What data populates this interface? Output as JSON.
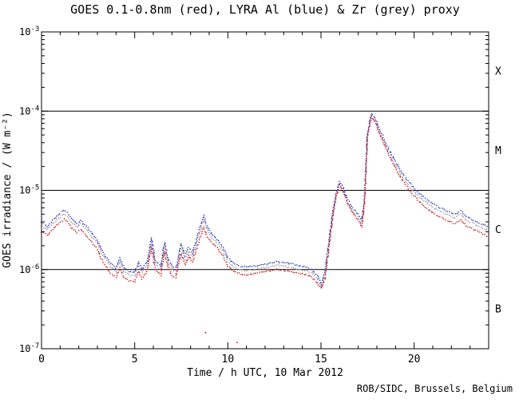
{
  "title": "GOES 0.1-0.8nm (red), LYRA Al (blue) & Zr (grey) proxy",
  "xlabel": "Time / h UTC, 10 Mar 2012",
  "ylabel": "GOES irradiance / (W m⁻²)",
  "credit": "ROB/SIDC, Brussels, Belgium",
  "colors": {
    "goes": "#cc1111",
    "al": "#2233bb",
    "zr": "#9a9a9a",
    "axis": "#000000"
  },
  "chart_data": {
    "type": "scatter",
    "title": "GOES 0.1-0.8nm (red), LYRA Al (blue) & Zr (grey) proxy",
    "xlabel": "Time / h UTC, 10 Mar 2012",
    "ylabel": "GOES irradiance / (W m⁻²)",
    "legend": "encoded in title: GOES=red, LYRA Al=blue, LYRA Zr=grey",
    "xlim": [
      0,
      24
    ],
    "ylog": true,
    "ylim_exp": [
      -7,
      -3
    ],
    "xticks_major": [
      0,
      5,
      10,
      15,
      20
    ],
    "hlines_exp": [
      -6,
      -5,
      -4
    ],
    "flare_classes": [
      {
        "label": "X",
        "exp": -3.5
      },
      {
        "label": "M",
        "exp": -4.5
      },
      {
        "label": "C",
        "exp": -5.5
      },
      {
        "label": "B",
        "exp": -6.5
      }
    ],
    "x": [
      0.0,
      0.3,
      0.6,
      0.9,
      1.2,
      1.4,
      1.6,
      1.9,
      2.1,
      2.4,
      2.7,
      3.0,
      3.2,
      3.5,
      3.7,
      4.0,
      4.2,
      4.4,
      4.7,
      5.0,
      5.2,
      5.4,
      5.7,
      5.9,
      6.1,
      6.4,
      6.6,
      6.8,
      7.0,
      7.2,
      7.5,
      7.7,
      7.9,
      8.1,
      8.4,
      8.7,
      8.9,
      9.2,
      9.5,
      9.8,
      10.0,
      10.3,
      10.7,
      11.0,
      11.4,
      11.8,
      12.2,
      12.6,
      13.0,
      13.4,
      13.8,
      14.2,
      14.5,
      14.8,
      15.0,
      15.2,
      15.4,
      15.6,
      15.8,
      16.0,
      16.2,
      16.4,
      16.7,
      17.0,
      17.2,
      17.35,
      17.5,
      17.7,
      17.9,
      18.1,
      18.4,
      18.7,
      19.0,
      19.4,
      19.8,
      20.2,
      20.6,
      21.0,
      21.4,
      21.8,
      22.2,
      22.5,
      22.8,
      23.2,
      23.6,
      24.0
    ],
    "series": [
      {
        "name": "LYRA Zr proxy",
        "color_key": "zr",
        "values": [
          3.5e-06,
          3.2e-06,
          3.8e-06,
          4.4e-06,
          5e-06,
          4.7e-06,
          4e-06,
          3.4e-06,
          3.8e-06,
          3.2e-06,
          2.6e-06,
          2.2e-06,
          1.6e-06,
          1.3e-06,
          1.1e-06,
          9.5e-07,
          1.26e-06,
          9.5e-07,
          8.6e-07,
          8.3e-07,
          1.13e-06,
          9e-07,
          1.17e-06,
          2.25e-06,
          1.17e-06,
          9.9e-07,
          2e-06,
          1.22e-06,
          9.9e-07,
          9e-07,
          1.9e-06,
          1.35e-06,
          1.7e-06,
          1.44e-06,
          2.5e-06,
          4.3e-06,
          3.1e-06,
          2.4e-06,
          2.1e-06,
          1.6e-06,
          1.26e-06,
          1.08e-06,
          9.9e-07,
          9.7e-07,
          9.9e-07,
          1.04e-06,
          1.08e-06,
          1.13e-06,
          1.1e-06,
          1.06e-06,
          1.01e-06,
          9.7e-07,
          9e-07,
          7.7e-07,
          5.9e-07,
          8.1e-07,
          1.8e-06,
          4.3e-06,
          8.1e-06,
          1.17e-05,
          9.9e-06,
          7.2e-06,
          5.4e-06,
          4.5e-06,
          3.8e-06,
          8.1e-06,
          5e-05,
          8.3e-05,
          7.4e-05,
          5.6e-05,
          4e-05,
          2.8e-05,
          2.1e-05,
          1.44e-05,
          1.08e-05,
          8.6e-06,
          7.2e-06,
          6.1e-06,
          5.4e-06,
          4.9e-06,
          4.5e-06,
          5e-06,
          4.2e-06,
          3.8e-06,
          3.4e-06,
          3.1e-06
        ]
      },
      {
        "name": "LYRA Al proxy",
        "color_key": "al",
        "values": [
          3.9e-06,
          3.5e-06,
          4.2e-06,
          4.9e-06,
          5.6e-06,
          5.2e-06,
          4.4e-06,
          3.8e-06,
          4.2e-06,
          3.5e-06,
          2.9e-06,
          2.4e-06,
          1.8e-06,
          1.4e-06,
          1.2e-06,
          1.05e-06,
          1.4e-06,
          1.05e-06,
          9.5e-07,
          9.2e-07,
          1.25e-06,
          1e-06,
          1.3e-06,
          2.5e-06,
          1.3e-06,
          1.1e-06,
          2.2e-06,
          1.35e-06,
          1.1e-06,
          1e-06,
          2.1e-06,
          1.5e-06,
          1.9e-06,
          1.6e-06,
          2.8e-06,
          4.8e-06,
          3.4e-06,
          2.7e-06,
          2.3e-06,
          1.8e-06,
          1.4e-06,
          1.2e-06,
          1.1e-06,
          1.08e-06,
          1.1e-06,
          1.15e-06,
          1.2e-06,
          1.25e-06,
          1.22e-06,
          1.18e-06,
          1.12e-06,
          1.08e-06,
          1e-06,
          8.5e-07,
          6.5e-07,
          9e-07,
          2e-06,
          4.8e-06,
          9e-06,
          1.3e-05,
          1.1e-05,
          8e-06,
          6e-06,
          5e-06,
          4.2e-06,
          9e-06,
          5.5e-05,
          9.2e-05,
          8.2e-05,
          6.2e-05,
          4.4e-05,
          3.1e-05,
          2.3e-05,
          1.6e-05,
          1.2e-05,
          9.5e-06,
          8e-06,
          6.8e-06,
          6e-06,
          5.4e-06,
          5e-06,
          5.5e-06,
          4.7e-06,
          4.2e-06,
          3.8e-06,
          3.4e-06
        ]
      },
      {
        "name": "GOES 0.1-0.8nm",
        "color_key": "goes",
        "values": [
          3e-06,
          2.7e-06,
          3.2e-06,
          3.8e-06,
          4.3e-06,
          4e-06,
          3.4e-06,
          2.9e-06,
          3.2e-06,
          2.7e-06,
          2.2e-06,
          1.8e-06,
          1.4e-06,
          1.05e-06,
          9e-07,
          8e-07,
          1.05e-06,
          8e-07,
          7.2e-07,
          7e-07,
          9.5e-07,
          7.5e-07,
          1e-06,
          1.9e-06,
          1e-06,
          8.5e-07,
          1.7e-06,
          1.05e-06,
          8.5e-07,
          7.8e-07,
          1.6e-06,
          1.15e-06,
          1.5e-06,
          1.25e-06,
          2.1e-06,
          3.4e-06,
          2.6e-06,
          2.1e-06,
          1.8e-06,
          1.4e-06,
          1.1e-06,
          9.5e-07,
          8.8e-07,
          8.5e-07,
          8.8e-07,
          9.2e-07,
          9.6e-07,
          1e-06,
          9.8e-07,
          9.4e-07,
          9e-07,
          8.6e-07,
          8e-07,
          6.8e-07,
          5.8e-07,
          7.5e-07,
          1.6e-06,
          4e-06,
          8e-06,
          1.15e-05,
          9.5e-06,
          7e-06,
          5.2e-06,
          4.2e-06,
          3.4e-06,
          8e-06,
          5e-05,
          8.5e-05,
          7.5e-05,
          5.5e-05,
          3.8e-05,
          2.6e-05,
          1.9e-05,
          1.3e-05,
          9.5e-06,
          7.5e-06,
          6.2e-06,
          5.2e-06,
          4.6e-06,
          4.1e-06,
          3.8e-06,
          4.2e-06,
          3.6e-06,
          3.2e-06,
          2.9e-06,
          2.6e-06
        ]
      }
    ],
    "outliers": [
      {
        "x": 8.8,
        "y": 1.6e-07
      },
      {
        "x": 10.5,
        "y": 1.2e-07
      }
    ]
  }
}
